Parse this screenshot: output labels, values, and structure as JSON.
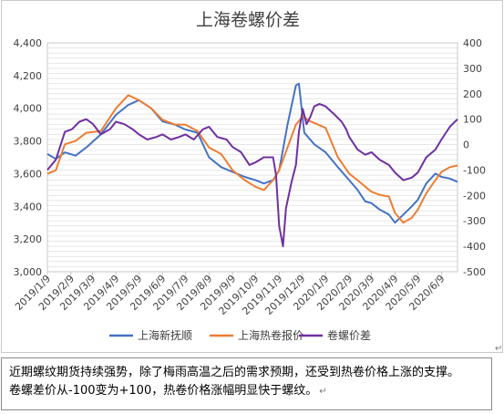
{
  "chart_data": {
    "type": "line",
    "title": "上海卷螺价差",
    "y_left": {
      "min": 3000,
      "max": 4400,
      "step": 200,
      "ticks": [
        "3,000",
        "3,200",
        "3,400",
        "3,600",
        "3,800",
        "4,000",
        "4,200",
        "4,400"
      ]
    },
    "y_right": {
      "min": -500,
      "max": 400,
      "step": 100,
      "ticks": [
        "-500",
        "-400",
        "-300",
        "-200",
        "-100",
        "0",
        "100",
        "200",
        "300",
        "400"
      ]
    },
    "x_range": [
      "2019-01-09",
      "2020-06-30"
    ],
    "x_ticks": [
      "2019/1/9",
      "2019/2/9",
      "2019/3/9",
      "2019/4/9",
      "2019/5/9",
      "2019/6/9",
      "2019/7/9",
      "2019/8/9",
      "2019/9/9",
      "2019/10/9",
      "2019/11/9",
      "2019/12/9",
      "2020/1/9",
      "2020/2/9",
      "2020/3/9",
      "2020/4/9",
      "2020/5/9",
      "2020/6/9"
    ],
    "grid": true,
    "legend_position": "bottom",
    "series": [
      {
        "name": "上海新抚顺",
        "color": "#4472c4",
        "axis": "left",
        "points": [
          [
            "2019-01-09",
            3720
          ],
          [
            "2019-01-20",
            3690
          ],
          [
            "2019-02-01",
            3730
          ],
          [
            "2019-02-15",
            3710
          ],
          [
            "2019-03-01",
            3760
          ],
          [
            "2019-03-20",
            3840
          ],
          [
            "2019-04-09",
            3960
          ],
          [
            "2019-04-25",
            4020
          ],
          [
            "2019-05-09",
            4050
          ],
          [
            "2019-05-25",
            4000
          ],
          [
            "2019-06-09",
            3920
          ],
          [
            "2019-06-25",
            3900
          ],
          [
            "2019-07-09",
            3870
          ],
          [
            "2019-07-25",
            3850
          ],
          [
            "2019-08-09",
            3700
          ],
          [
            "2019-08-25",
            3640
          ],
          [
            "2019-09-09",
            3610
          ],
          [
            "2019-09-25",
            3580
          ],
          [
            "2019-10-09",
            3560
          ],
          [
            "2019-10-20",
            3540
          ],
          [
            "2019-11-01",
            3560
          ],
          [
            "2019-11-09",
            3620
          ],
          [
            "2019-11-20",
            3900
          ],
          [
            "2019-12-01",
            4140
          ],
          [
            "2019-12-05",
            4150
          ],
          [
            "2019-12-12",
            3850
          ],
          [
            "2019-12-25",
            3780
          ],
          [
            "2020-01-09",
            3730
          ],
          [
            "2020-01-25",
            3640
          ],
          [
            "2020-02-09",
            3560
          ],
          [
            "2020-02-20",
            3500
          ],
          [
            "2020-03-01",
            3430
          ],
          [
            "2020-03-09",
            3420
          ],
          [
            "2020-03-20",
            3380
          ],
          [
            "2020-04-01",
            3350
          ],
          [
            "2020-04-09",
            3300
          ],
          [
            "2020-04-20",
            3350
          ],
          [
            "2020-05-01",
            3400
          ],
          [
            "2020-05-09",
            3440
          ],
          [
            "2020-05-20",
            3540
          ],
          [
            "2020-06-01",
            3600
          ],
          [
            "2020-06-09",
            3580
          ],
          [
            "2020-06-20",
            3570
          ],
          [
            "2020-06-30",
            3550
          ]
        ]
      },
      {
        "name": "上海热卷报价",
        "color": "#ed7d31",
        "axis": "left",
        "points": [
          [
            "2019-01-09",
            3600
          ],
          [
            "2019-01-20",
            3620
          ],
          [
            "2019-02-01",
            3780
          ],
          [
            "2019-02-15",
            3800
          ],
          [
            "2019-03-01",
            3850
          ],
          [
            "2019-03-20",
            3860
          ],
          [
            "2019-04-09",
            4000
          ],
          [
            "2019-04-25",
            4080
          ],
          [
            "2019-05-09",
            4050
          ],
          [
            "2019-05-25",
            4000
          ],
          [
            "2019-06-09",
            3930
          ],
          [
            "2019-06-25",
            3900
          ],
          [
            "2019-07-09",
            3900
          ],
          [
            "2019-07-25",
            3860
          ],
          [
            "2019-08-09",
            3760
          ],
          [
            "2019-08-25",
            3720
          ],
          [
            "2019-09-09",
            3620
          ],
          [
            "2019-09-25",
            3560
          ],
          [
            "2019-10-09",
            3520
          ],
          [
            "2019-10-20",
            3500
          ],
          [
            "2019-11-01",
            3560
          ],
          [
            "2019-11-09",
            3620
          ],
          [
            "2019-11-20",
            3760
          ],
          [
            "2019-12-01",
            3900
          ],
          [
            "2019-12-10",
            3950
          ],
          [
            "2019-12-20",
            3920
          ],
          [
            "2020-01-09",
            3880
          ],
          [
            "2020-01-25",
            3700
          ],
          [
            "2020-02-09",
            3600
          ],
          [
            "2020-02-20",
            3560
          ],
          [
            "2020-03-01",
            3520
          ],
          [
            "2020-03-09",
            3490
          ],
          [
            "2020-03-20",
            3470
          ],
          [
            "2020-04-01",
            3460
          ],
          [
            "2020-04-09",
            3360
          ],
          [
            "2020-04-20",
            3300
          ],
          [
            "2020-05-01",
            3330
          ],
          [
            "2020-05-09",
            3380
          ],
          [
            "2020-05-20",
            3480
          ],
          [
            "2020-06-01",
            3560
          ],
          [
            "2020-06-09",
            3610
          ],
          [
            "2020-06-20",
            3640
          ],
          [
            "2020-06-30",
            3650
          ]
        ]
      },
      {
        "name": "卷螺价差",
        "color": "#7030a0",
        "axis": "right",
        "points": [
          [
            "2019-01-09",
            -100
          ],
          [
            "2019-01-20",
            -60
          ],
          [
            "2019-02-01",
            50
          ],
          [
            "2019-02-10",
            60
          ],
          [
            "2019-02-20",
            90
          ],
          [
            "2019-03-01",
            100
          ],
          [
            "2019-03-10",
            80
          ],
          [
            "2019-03-20",
            40
          ],
          [
            "2019-04-01",
            60
          ],
          [
            "2019-04-09",
            90
          ],
          [
            "2019-04-20",
            80
          ],
          [
            "2019-05-01",
            60
          ],
          [
            "2019-05-09",
            40
          ],
          [
            "2019-05-20",
            20
          ],
          [
            "2019-06-01",
            30
          ],
          [
            "2019-06-09",
            40
          ],
          [
            "2019-06-20",
            20
          ],
          [
            "2019-07-01",
            30
          ],
          [
            "2019-07-09",
            40
          ],
          [
            "2019-07-20",
            20
          ],
          [
            "2019-08-01",
            60
          ],
          [
            "2019-08-09",
            70
          ],
          [
            "2019-08-20",
            30
          ],
          [
            "2019-09-01",
            20
          ],
          [
            "2019-09-09",
            -10
          ],
          [
            "2019-09-20",
            -30
          ],
          [
            "2019-10-01",
            -80
          ],
          [
            "2019-10-09",
            -70
          ],
          [
            "2019-10-20",
            -50
          ],
          [
            "2019-11-01",
            -50
          ],
          [
            "2019-11-05",
            -120
          ],
          [
            "2019-11-09",
            -320
          ],
          [
            "2019-11-14",
            -400
          ],
          [
            "2019-11-18",
            -250
          ],
          [
            "2019-11-25",
            -150
          ],
          [
            "2019-12-01",
            -80
          ],
          [
            "2019-12-05",
            50
          ],
          [
            "2019-12-10",
            140
          ],
          [
            "2019-12-15",
            80
          ],
          [
            "2019-12-20",
            110
          ],
          [
            "2019-12-25",
            150
          ],
          [
            "2020-01-01",
            160
          ],
          [
            "2020-01-09",
            150
          ],
          [
            "2020-01-20",
            120
          ],
          [
            "2020-01-30",
            90
          ],
          [
            "2020-02-05",
            60
          ],
          [
            "2020-02-09",
            30
          ],
          [
            "2020-02-20",
            -20
          ],
          [
            "2020-03-01",
            -40
          ],
          [
            "2020-03-09",
            -30
          ],
          [
            "2020-03-20",
            -60
          ],
          [
            "2020-04-01",
            -80
          ],
          [
            "2020-04-09",
            -110
          ],
          [
            "2020-04-20",
            -140
          ],
          [
            "2020-05-01",
            -130
          ],
          [
            "2020-05-09",
            -110
          ],
          [
            "2020-05-20",
            -50
          ],
          [
            "2020-06-01",
            -20
          ],
          [
            "2020-06-09",
            20
          ],
          [
            "2020-06-20",
            70
          ],
          [
            "2020-06-30",
            100
          ]
        ]
      }
    ]
  },
  "caption": {
    "line1": "近期螺纹期货持续强势，除了梅雨高温之后的需求预期，还受到热卷价格上涨的支撑。",
    "line2": "卷螺差价从-100变为+100，热卷价格涨幅明显快于螺纹。",
    "mark": "↵"
  },
  "end_mark": "↵"
}
